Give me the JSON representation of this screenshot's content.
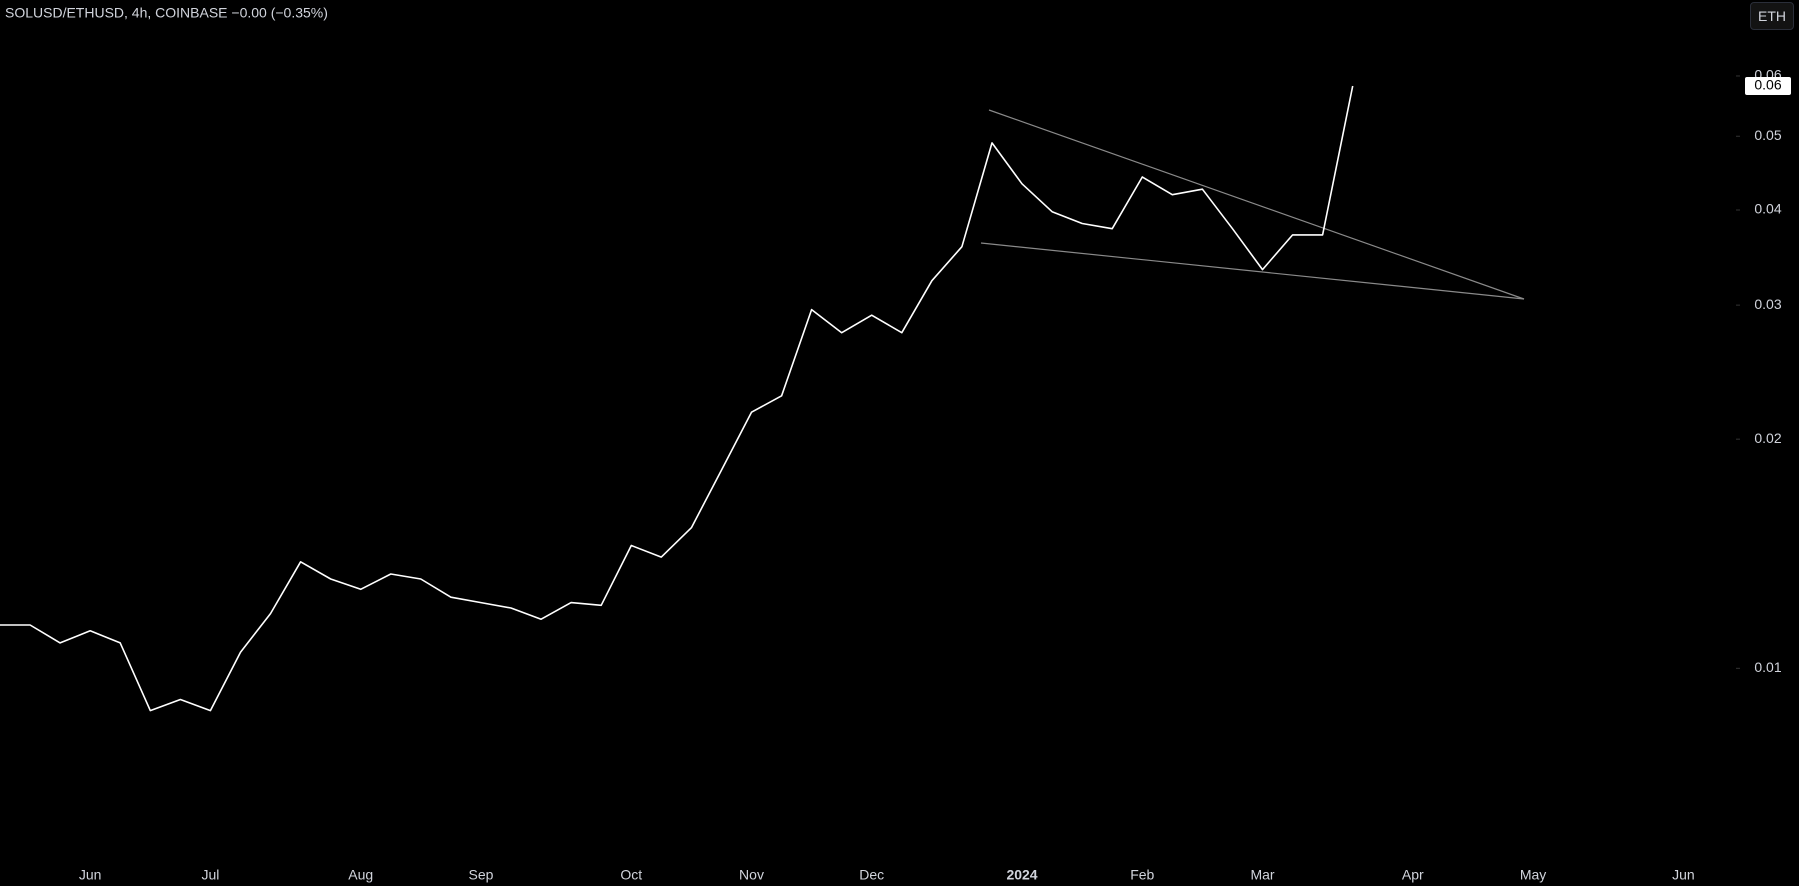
{
  "chart_data": {
    "type": "line",
    "title": "SOLUSD/ETHUSD, 4h, COINBASE  −0.00 (−0.35%)",
    "log_scale": true,
    "grid": false,
    "categories": [
      null,
      null,
      null,
      "Jun",
      null,
      null,
      null,
      "Jul",
      null,
      null,
      null,
      null,
      "Aug",
      null,
      null,
      null,
      "Sep",
      null,
      null,
      null,
      null,
      "Oct",
      null,
      null,
      null,
      "Nov",
      null,
      null,
      null,
      "Dec",
      null,
      null,
      null,
      null,
      "2024",
      null,
      null,
      null,
      "Feb",
      null,
      null,
      null,
      "Mar",
      null,
      null,
      null,
      null,
      "Apr",
      null,
      null,
      null,
      "May",
      null,
      null,
      null,
      null,
      "Jun",
      null
    ],
    "series": [
      {
        "name": "SOLUSD/ETHUSD",
        "color": "#ffffff",
        "values": [
          0.0114,
          0.0114,
          0.0108,
          0.0112,
          0.0108,
          0.0088,
          0.0091,
          0.0088,
          0.0105,
          0.0118,
          0.0138,
          0.0131,
          0.0127,
          0.0133,
          0.0131,
          0.0124,
          0.0122,
          0.012,
          0.0116,
          0.0122,
          0.0121,
          0.0145,
          0.014,
          0.0153,
          0.0182,
          0.0217,
          0.0228,
          0.0296,
          0.0276,
          0.0291,
          0.0276,
          0.0323,
          0.0358,
          0.049,
          0.0433,
          0.0398,
          0.0384,
          0.0378,
          0.0442,
          0.0419,
          0.0426,
          0.0378,
          0.0334,
          0.0371,
          0.0371,
          0.0582,
          null,
          null,
          null,
          null,
          null,
          null,
          null,
          null,
          null,
          null,
          null,
          null
        ]
      }
    ],
    "ylim": [
      0.0056,
      0.0755
    ],
    "yticks": [
      0.01,
      0.02,
      0.03,
      0.04,
      0.05,
      0.06
    ],
    "price_label": {
      "value": 0.0582,
      "label": "0.06"
    }
  },
  "toolbar": {
    "currency": "ETH"
  }
}
